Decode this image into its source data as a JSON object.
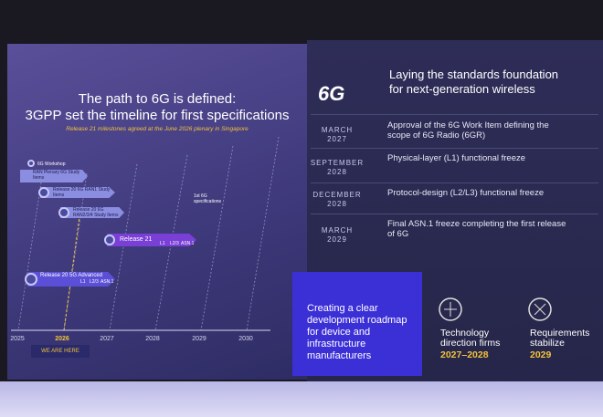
{
  "left": {
    "title_line1": "The path to 6G is defined:",
    "title_line2": "3GPP set the timeline for first specifications",
    "subtitle": "Release 21 milestones agreed at the June 2026 plenary in Singapore"
  },
  "timeline": {
    "items": [
      {
        "label": "6G Workshop"
      },
      {
        "label": "RAN Plenary 6G Study Items"
      },
      {
        "label": "Release 20 6G RAN1 Study Items"
      },
      {
        "label": "Release 20 6G RAN2/3/4 Study Items"
      },
      {
        "label": "Release 21"
      },
      {
        "label": "Release 20 5G Advanced"
      }
    ],
    "stage_labels": [
      "L1",
      "L2/3",
      "ASN.1"
    ],
    "annotation": "1st 6G specifications",
    "years": [
      "2025",
      "2026",
      "2027",
      "2028",
      "2029",
      "2030"
    ],
    "marker": "WE ARE HERE"
  },
  "right": {
    "logo": "6G",
    "heading_line1": "Laying the standards foundation",
    "heading_line2": "for next-generation wireless",
    "milestones": [
      {
        "month": "MARCH",
        "year": "2027",
        "text": "Approval of the 6G Work Item defining the scope of 6G Radio (6GR)"
      },
      {
        "month": "SEPTEMBER",
        "year": "2028",
        "text": "Physical-layer (L1) functional freeze"
      },
      {
        "month": "DECEMBER",
        "year": "2028",
        "text": "Protocol-design (L2/L3) functional freeze"
      },
      {
        "month": "MARCH",
        "year": "2029",
        "text": "Final ASN.1 freeze completing the first release of 6G"
      }
    ]
  },
  "footer": {
    "callout": "Creating a clear development roadmap for device and infrastructure manufacturers",
    "stats": [
      {
        "label": "Technology direction firms",
        "value": "2027–2028"
      },
      {
        "label": "Requirements stabilize",
        "value": "2029"
      }
    ]
  }
}
